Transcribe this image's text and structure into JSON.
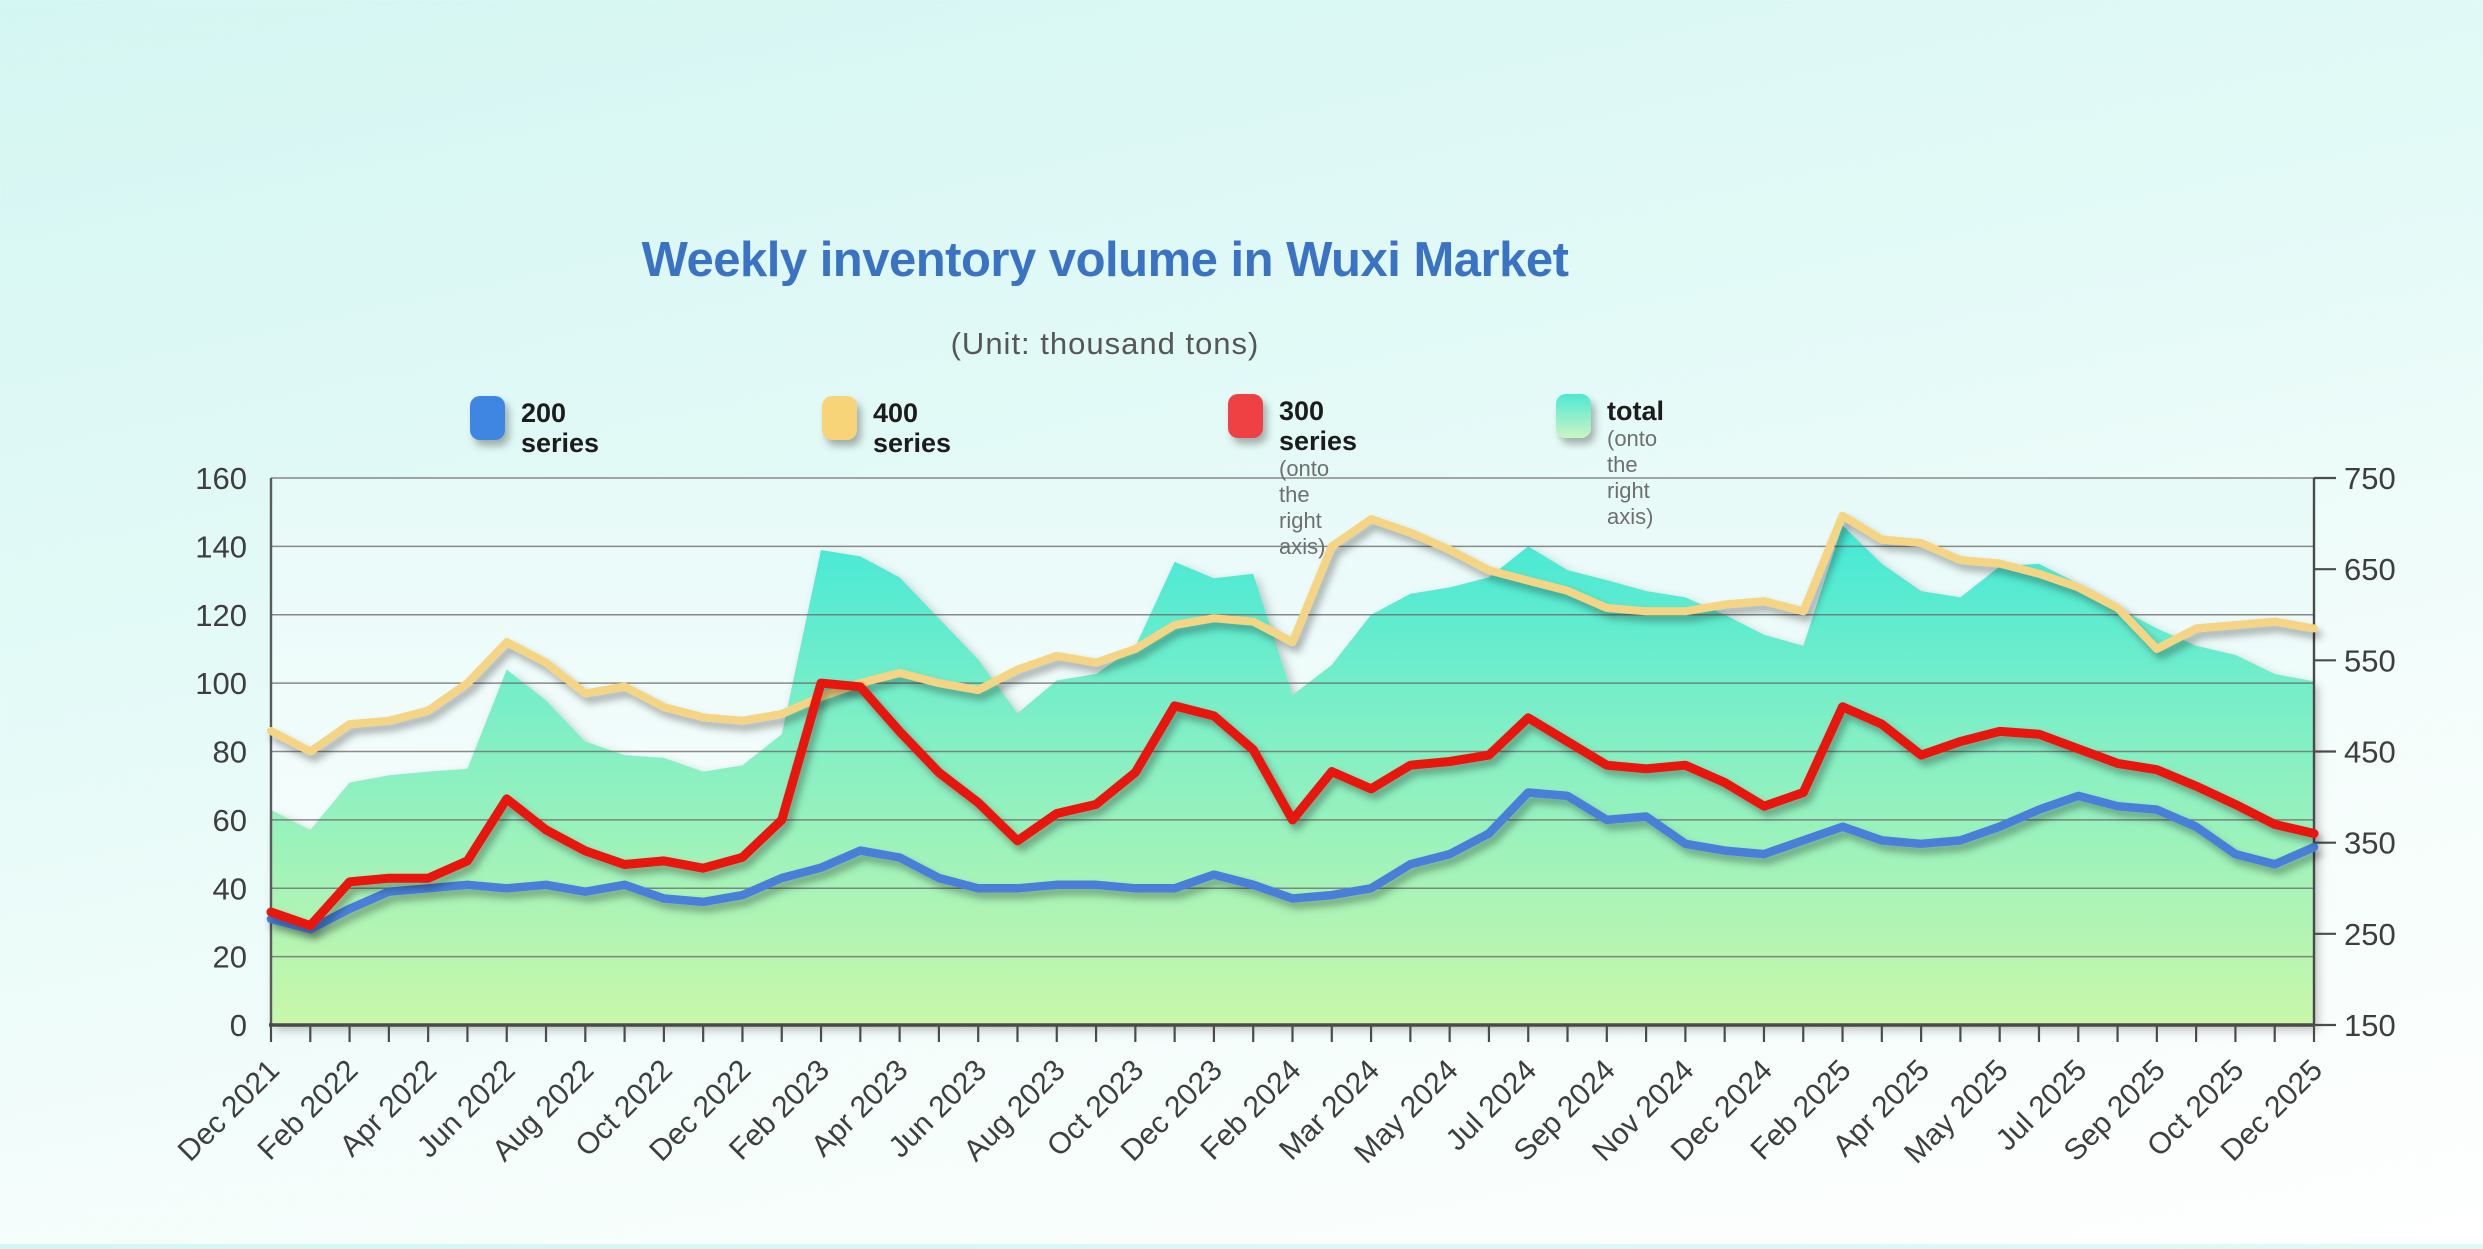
{
  "title": "Weekly inventory volume in Wuxi Market",
  "subtitle": "(Unit: thousand tons)",
  "legend": [
    {
      "label": "200 series",
      "note": "",
      "swatch": "#3E86E2"
    },
    {
      "label": "400 series",
      "note": "",
      "swatch": "#F8D478"
    },
    {
      "label": "300 series",
      "note": "(onto the right axis)",
      "swatch": "#EF4043"
    },
    {
      "label": "total",
      "note": "(onto the right axis)",
      "swatch_top": "#4DE8D3",
      "swatch_bottom": "#CDF4C3"
    }
  ],
  "colors": {
    "title": "#3B73C4",
    "subtitle": "#565656",
    "axis_text": "#3E3E3E",
    "grid": "#6E6E6E",
    "axis": "#4A4A4A",
    "plot_bg_top": "#E7FAF8",
    "plot_bg_bottom": "#FBFFFE",
    "series_200": "#4A7FD9",
    "series_400": "#F5D584",
    "series_300": "#E8120C",
    "area_top": "#35E7DB",
    "area_mid": "#7FEFC6",
    "area_bottom": "#C9F7AA"
  },
  "chart_data": {
    "type": "line",
    "note": "weekly series Dec 2021 - Dec 2025; values sampled every 4 weeks (one value per axis tick); x labels shown every 2 ticks",
    "x_tick_labels": [
      "Dec 2021",
      "Feb 2022",
      "Apr 2022",
      "Jun 2022",
      "Aug 2022",
      "Oct 2022",
      "Dec 2022",
      "Feb 2023",
      "Apr 2023",
      "Jun 2023",
      "Aug 2023",
      "Oct 2023",
      "Dec 2023",
      "Feb 2024",
      "Mar 2024",
      "May 2024",
      "Jul 2024",
      "Sep 2024",
      "Nov 2024",
      "Dec 2024",
      "Feb 2025",
      "Apr 2025",
      "May 2025",
      "Jul 2025",
      "Sep 2025",
      "Oct 2025",
      "Dec 2025"
    ],
    "label_every_n_ticks": 2,
    "left_axis": {
      "min": 0,
      "max": 160,
      "step": 20,
      "ticks": [
        0,
        20,
        40,
        60,
        80,
        100,
        120,
        140,
        160
      ]
    },
    "right_axis": {
      "min": 150,
      "max": 750,
      "step": 100,
      "ticks": [
        150,
        250,
        350,
        450,
        550,
        650,
        750
      ]
    },
    "grid": true,
    "legend_position": "top",
    "series": [
      {
        "name": "200 series",
        "axis": "left",
        "kind": "line",
        "color": "#4A7FD9",
        "values": [
          31,
          28,
          34,
          39,
          40,
          41,
          40,
          41,
          39,
          41,
          37,
          36,
          38,
          43,
          46,
          51,
          49,
          43,
          40,
          40,
          41,
          41,
          40,
          40,
          44,
          41,
          37,
          38,
          40,
          47,
          50,
          56,
          68,
          67,
          60,
          61,
          53,
          51,
          50,
          54,
          58,
          54,
          53,
          54,
          58,
          63,
          67,
          64,
          63,
          58,
          50,
          47,
          52
        ]
      },
      {
        "name": "400 series",
        "axis": "left",
        "kind": "line",
        "color": "#F5D584",
        "values": [
          86,
          80,
          88,
          89,
          92,
          100,
          112,
          106,
          97,
          99,
          93,
          90,
          89,
          91,
          96,
          100,
          103,
          100,
          98,
          104,
          108,
          106,
          110,
          117,
          119,
          118,
          112,
          140,
          148,
          144,
          139,
          133,
          130,
          127,
          122,
          121,
          121,
          123,
          124,
          121,
          149,
          142,
          141,
          136,
          135,
          132,
          128,
          122,
          110,
          116,
          117,
          118,
          116
        ]
      },
      {
        "name": "300 series",
        "axis": "right",
        "kind": "line",
        "color": "#E8120C",
        "values": [
          274,
          259,
          307,
          311,
          311,
          330,
          398,
          364,
          341,
          326,
          330,
          322,
          334,
          375,
          525,
          521,
          472,
          427,
          394,
          352,
          382,
          392,
          427,
          500,
          489,
          452,
          375,
          428,
          409,
          435,
          439,
          446,
          487,
          461,
          435,
          431,
          435,
          416,
          390,
          405,
          499,
          480,
          446,
          461,
          472,
          469,
          453,
          437,
          430,
          412,
          392,
          370,
          360
        ]
      },
      {
        "name": "total",
        "axis": "right",
        "kind": "area",
        "gradient": [
          "#35E7DB",
          "#7FEFC6",
          "#C9F7AA"
        ],
        "values": [
          386,
          364,
          416,
          424,
          428,
          431,
          540,
          506,
          461,
          446,
          443,
          428,
          435,
          469,
          671,
          664,
          641,
          596,
          551,
          492,
          528,
          535,
          565,
          658,
          640,
          645,
          512,
          545,
          600,
          623,
          630,
          641,
          675,
          649,
          638,
          626,
          619,
          600,
          578,
          566,
          698,
          656,
          626,
          619,
          653,
          656,
          634,
          608,
          585,
          566,
          556,
          535,
          527
        ]
      }
    ]
  }
}
